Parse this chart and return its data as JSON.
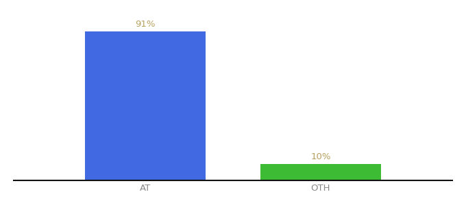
{
  "categories": [
    "AT",
    "OTH"
  ],
  "values": [
    91,
    10
  ],
  "bar_colors": [
    "#4169e1",
    "#3dbb35"
  ],
  "label_values": [
    "91%",
    "10%"
  ],
  "label_color": "#b8a060",
  "background_color": "#ffffff",
  "bar_width": 0.55,
  "xlim": [
    -0.3,
    1.7
  ],
  "ylim": [
    0,
    100
  ],
  "xlabel_fontsize": 9.5,
  "label_fontsize": 9.5,
  "tick_color": "#888888",
  "spine_color": "#111111"
}
